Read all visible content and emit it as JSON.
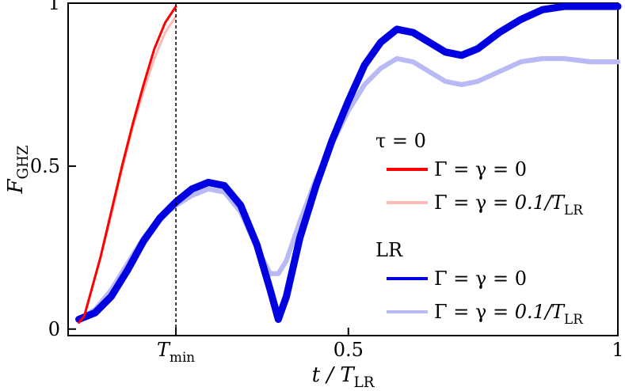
{
  "chart_data": {
    "type": "line",
    "xlabel": "t / T_LR",
    "ylabel": "F_GHZ",
    "xlim": [
      -0.02,
      1.0
    ],
    "ylim": [
      -0.02,
      1.0
    ],
    "x_ticks": [
      {
        "value": 0.18,
        "label": "T_min"
      },
      {
        "value": 0.5,
        "label": "0.5"
      },
      {
        "value": 1.0,
        "label": "1"
      }
    ],
    "y_ticks": [
      {
        "value": 0.0,
        "label": "0"
      },
      {
        "value": 0.5,
        "label": "0.5"
      },
      {
        "value": 1.0,
        "label": "1"
      }
    ],
    "vline": {
      "x": 0.18,
      "style": "dashed"
    },
    "legend_groups": [
      {
        "title": "τ = 0",
        "entries": [
          0,
          1
        ]
      },
      {
        "title": "LR",
        "entries": [
          2,
          3
        ]
      }
    ],
    "series": [
      {
        "name": "Γ = γ = 0",
        "group": "τ = 0",
        "color": "#ff0000",
        "points": [
          [
            0.0,
            0.02
          ],
          [
            0.01,
            0.04
          ],
          [
            0.02,
            0.1
          ],
          [
            0.04,
            0.22
          ],
          [
            0.06,
            0.36
          ],
          [
            0.08,
            0.5
          ],
          [
            0.1,
            0.63
          ],
          [
            0.12,
            0.75
          ],
          [
            0.14,
            0.86
          ],
          [
            0.16,
            0.94
          ],
          [
            0.18,
            0.99
          ]
        ]
      },
      {
        "name": "Γ = γ = 0.1/T_LR",
        "group": "τ = 0",
        "color": "#ffb9b9",
        "points": [
          [
            0.0,
            0.02
          ],
          [
            0.01,
            0.04
          ],
          [
            0.02,
            0.1
          ],
          [
            0.04,
            0.22
          ],
          [
            0.06,
            0.35
          ],
          [
            0.08,
            0.49
          ],
          [
            0.1,
            0.62
          ],
          [
            0.12,
            0.73
          ],
          [
            0.14,
            0.83
          ],
          [
            0.16,
            0.91
          ],
          [
            0.18,
            0.96
          ]
        ]
      },
      {
        "name": "Γ = γ = 0",
        "group": "LR",
        "color": "#0000e0",
        "band": 0.022,
        "points": [
          [
            0.0,
            0.03
          ],
          [
            0.03,
            0.05
          ],
          [
            0.06,
            0.1
          ],
          [
            0.09,
            0.18
          ],
          [
            0.12,
            0.27
          ],
          [
            0.15,
            0.34
          ],
          [
            0.18,
            0.39
          ],
          [
            0.21,
            0.43
          ],
          [
            0.24,
            0.45
          ],
          [
            0.27,
            0.44
          ],
          [
            0.3,
            0.38
          ],
          [
            0.33,
            0.26
          ],
          [
            0.355,
            0.12
          ],
          [
            0.37,
            0.03
          ],
          [
            0.385,
            0.1
          ],
          [
            0.41,
            0.28
          ],
          [
            0.44,
            0.44
          ],
          [
            0.47,
            0.58
          ],
          [
            0.5,
            0.7
          ],
          [
            0.53,
            0.81
          ],
          [
            0.56,
            0.88
          ],
          [
            0.59,
            0.92
          ],
          [
            0.62,
            0.91
          ],
          [
            0.65,
            0.88
          ],
          [
            0.68,
            0.85
          ],
          [
            0.71,
            0.84
          ],
          [
            0.74,
            0.86
          ],
          [
            0.78,
            0.91
          ],
          [
            0.82,
            0.95
          ],
          [
            0.86,
            0.98
          ],
          [
            0.9,
            0.99
          ],
          [
            0.95,
            0.99
          ],
          [
            1.0,
            0.99
          ]
        ]
      },
      {
        "name": "Γ = γ = 0.1/T_LR",
        "group": "LR",
        "color": "#b9b9f5",
        "band": 0.015,
        "points": [
          [
            0.0,
            0.03
          ],
          [
            0.03,
            0.06
          ],
          [
            0.06,
            0.12
          ],
          [
            0.09,
            0.2
          ],
          [
            0.12,
            0.28
          ],
          [
            0.15,
            0.34
          ],
          [
            0.18,
            0.38
          ],
          [
            0.21,
            0.41
          ],
          [
            0.24,
            0.43
          ],
          [
            0.27,
            0.42
          ],
          [
            0.3,
            0.36
          ],
          [
            0.33,
            0.25
          ],
          [
            0.355,
            0.17
          ],
          [
            0.37,
            0.17
          ],
          [
            0.385,
            0.21
          ],
          [
            0.41,
            0.33
          ],
          [
            0.44,
            0.46
          ],
          [
            0.47,
            0.57
          ],
          [
            0.5,
            0.67
          ],
          [
            0.53,
            0.75
          ],
          [
            0.56,
            0.8
          ],
          [
            0.59,
            0.83
          ],
          [
            0.62,
            0.82
          ],
          [
            0.65,
            0.79
          ],
          [
            0.68,
            0.76
          ],
          [
            0.71,
            0.75
          ],
          [
            0.74,
            0.76
          ],
          [
            0.78,
            0.79
          ],
          [
            0.82,
            0.82
          ],
          [
            0.86,
            0.83
          ],
          [
            0.9,
            0.83
          ],
          [
            0.95,
            0.82
          ],
          [
            1.0,
            0.82
          ]
        ]
      }
    ]
  }
}
